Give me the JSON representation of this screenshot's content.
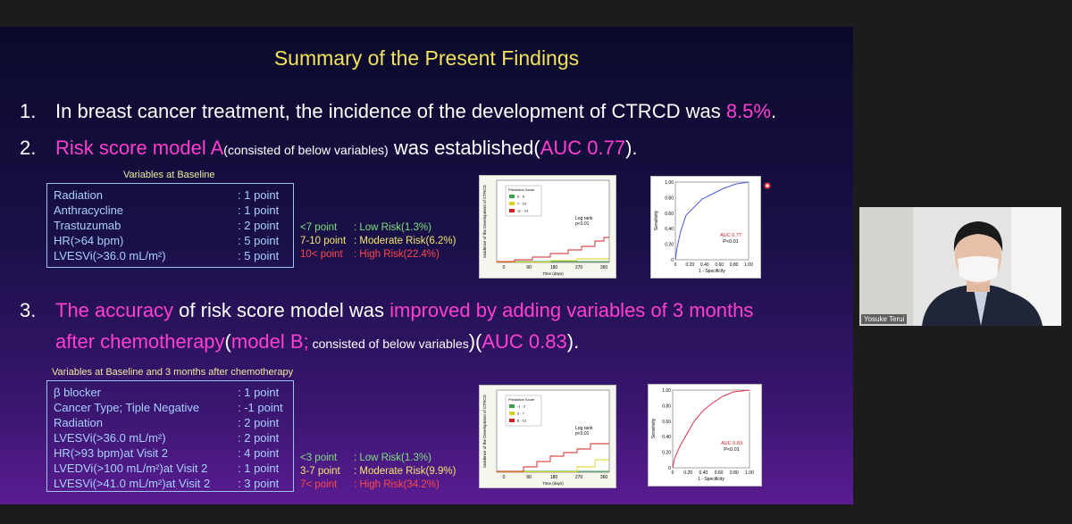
{
  "slide": {
    "title": "Summary of the Present Findings",
    "finding1": {
      "number": "1.",
      "parts": [
        "In breast cancer treatment, the incidence of the development of CTRCD was ",
        "8.5%",
        "."
      ]
    },
    "finding2": {
      "number": "2.",
      "parts": [
        "Risk score model A",
        "(consisted of below variables)",
        " was established(",
        "AUC 0.77",
        ")."
      ]
    },
    "model_a": {
      "caption": "Variables at Baseline",
      "variables": [
        [
          "Radiation",
          ": 1 point"
        ],
        [
          "Anthracycline",
          ": 1 point"
        ],
        [
          "Trastuzumab",
          ": 2 point"
        ],
        [
          "HR(>64 bpm)",
          ": 5 point"
        ],
        [
          "LVESVi(>36.0 mL/m²)",
          ": 5 point"
        ]
      ],
      "risk": [
        [
          "<7 point",
          ": Low Risk(1.3%)"
        ],
        [
          "7-10 point",
          ": Moderate Risk(6.2%)"
        ],
        [
          "10< point",
          ": High Risk(22.4%)"
        ]
      ]
    },
    "km_a": {
      "ylabel": "Incidence of the Development of CTRCD",
      "xlabel": "Time (days)",
      "xticks": [
        "0",
        "90",
        "180",
        "270",
        "360"
      ],
      "legend_title": "Prediction Score",
      "legend": [
        "0 - 6",
        "7 - 10",
        "11 - 14"
      ],
      "note": [
        "Log rank",
        "p<0.01"
      ]
    },
    "roc_a": {
      "ylabel": "Sensitivity",
      "xlabel": "1 - Specificity",
      "yticks": [
        "0",
        "0.20",
        "0.40",
        "0.60",
        "0.80",
        "1.00"
      ],
      "xticks": [
        "0",
        "0.20",
        "0.40",
        "0.60",
        "0.80",
        "1.00"
      ],
      "auc": "AUC 0.77",
      "p": "P<0.01"
    },
    "finding3": {
      "number": "3.",
      "line1": [
        "The accuracy",
        " of risk score model was ",
        "improved by adding variables of 3 months"
      ],
      "line2": [
        "after chemotherapy",
        "(",
        "model B;",
        " consisted of below variables",
        ")(",
        "AUC 0.83",
        ")."
      ]
    },
    "model_b": {
      "caption": "Variables at Baseline and 3 months after chemotherapy",
      "variables": [
        [
          "β blocker",
          ": 1 point"
        ],
        [
          "Cancer Type; Tiple Negative",
          ": -1 point"
        ],
        [
          "Radiation",
          ": 2 point"
        ],
        [
          "LVESVi(>36.0 mL/m²)",
          ": 2 point"
        ],
        [
          "HR(>93 bpm)at Visit 2",
          ": 4 point"
        ],
        [
          "LVEDVi(>100 mL/m²)at Visit 2",
          ": 1 point"
        ],
        [
          "LVESVi(>41.0 mL/m²)at Visit 2",
          ": 3 point"
        ]
      ],
      "risk": [
        [
          "<3 point",
          ": Low Risk(1.3%)"
        ],
        [
          "3-7 point",
          ": Moderate Risk(9.9%)"
        ],
        [
          "7< point",
          ": High Risk(34.2%)"
        ]
      ]
    },
    "km_b": {
      "ylabel": "Incidence of the Development of CTRCD",
      "xlabel": "Time (days)",
      "xticks": [
        "0",
        "90",
        "180",
        "270",
        "360"
      ],
      "legend_title": "Prediction Score",
      "legend": [
        "-1 - 2",
        "3 - 7",
        "8 - 12"
      ],
      "note": [
        "Log rank",
        "p<0.01"
      ]
    },
    "roc_b": {
      "ylabel": "Sensitivity",
      "xlabel": "1 - Specificity",
      "yticks": [
        "0",
        "0.20",
        "0.40",
        "0.60",
        "0.80",
        "1.00"
      ],
      "xticks": [
        "0",
        "0.20",
        "0.40",
        "0.60",
        "0.80",
        "1.00"
      ],
      "auc": "AUC 0.83",
      "p": "P<0.01"
    }
  },
  "video": {
    "name": "Yosuke Terui"
  }
}
